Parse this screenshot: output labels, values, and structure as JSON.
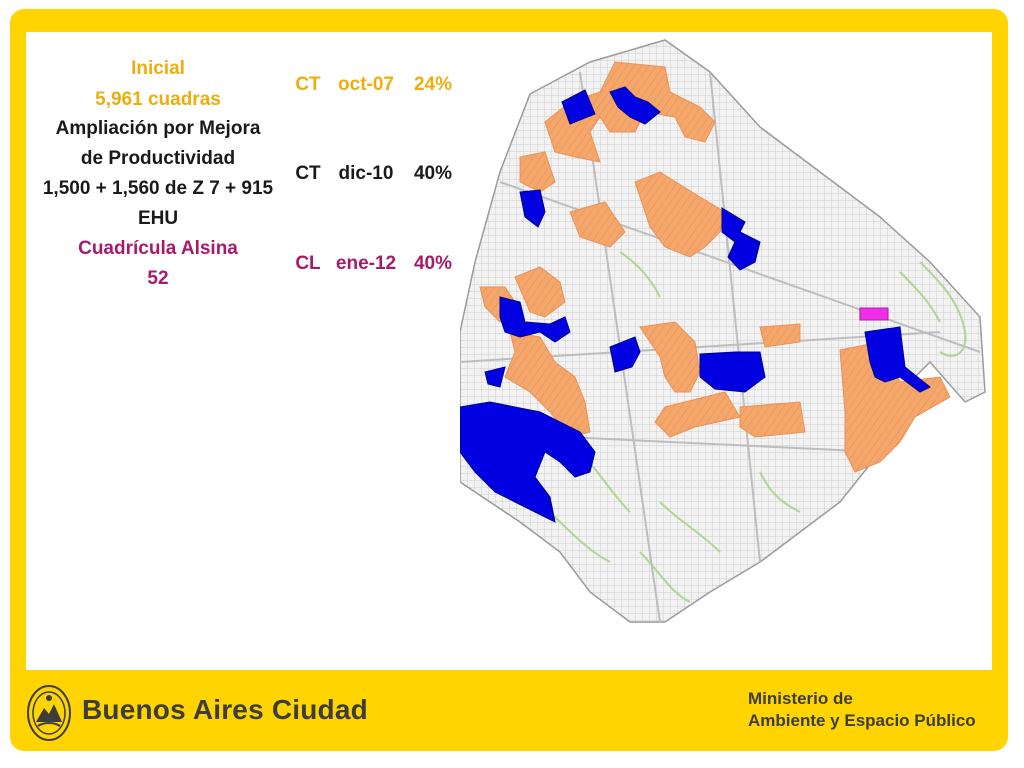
{
  "rows": [
    {
      "lines": [
        "Inicial",
        "5,961 cuadras"
      ],
      "type": "CT",
      "date": "oct-07",
      "pct": "24%",
      "color": "#ecae0f"
    },
    {
      "lines": [
        "Ampliación por Mejora",
        "de Productividad",
        "1,500 + 1,560 de Z 7 + 915",
        "EHU"
      ],
      "type": "CT",
      "date": "dic-10",
      "pct": "40%",
      "color": "#1a1a1a"
    },
    {
      "lines": [
        "Cuadrícula Alsina",
        "52"
      ],
      "type": "CL",
      "date": "ene-12",
      "pct": "40%",
      "color": "#a61b6b"
    }
  ],
  "map": {
    "zone_colors": {
      "blue": "#0000e0",
      "orange": "#f4a66b",
      "magenta": "#ee2ee8",
      "streets": "#c9c9c9",
      "parks": "#b8d99a"
    },
    "zone_icons": [
      "blue-zone",
      "orange-zone",
      "magenta-zone"
    ]
  },
  "footer": {
    "brand": "Buenos Aires Ciudad",
    "ministry_line1": "Ministerio de",
    "ministry_line2": "Ambiente y Espacio Público",
    "logo_icon": "city-seal-icon"
  },
  "theme": {
    "frame": "#ffd400",
    "panel": "#ffffff"
  }
}
